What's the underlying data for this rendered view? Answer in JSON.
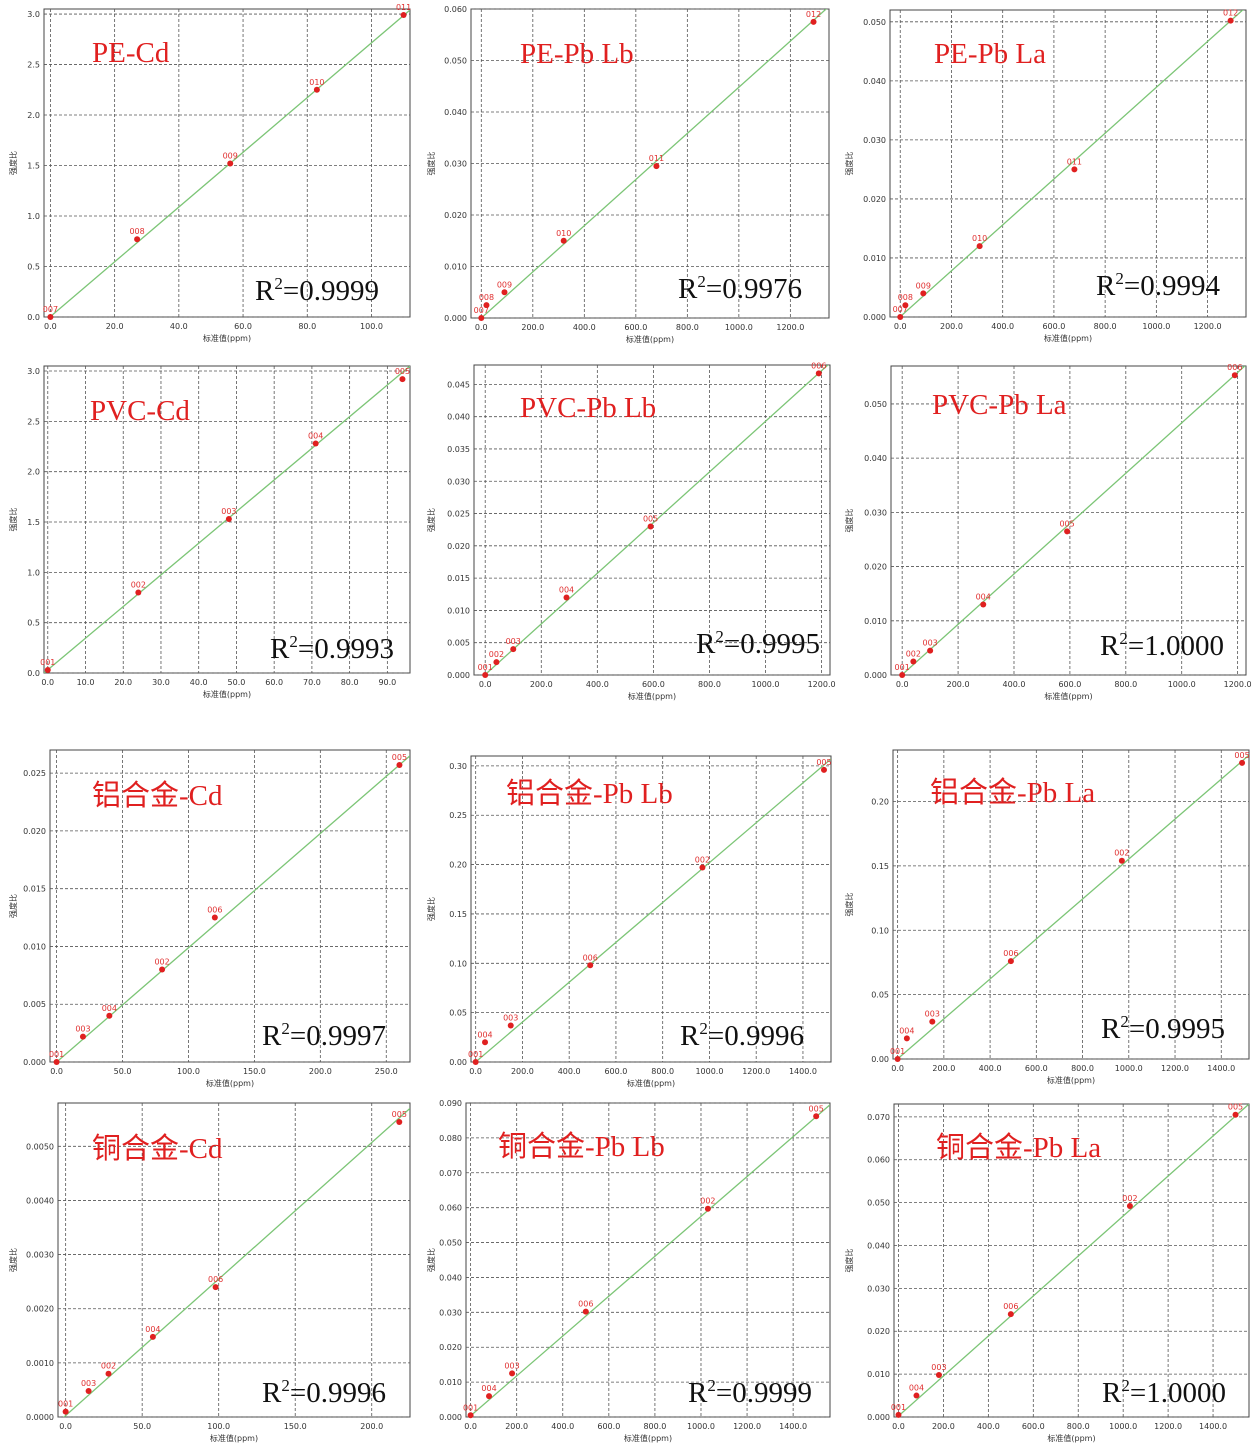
{
  "colors": {
    "point": "#e02020",
    "fit_line": "#7cc576",
    "grid": "#555555",
    "title": "#e02020",
    "r2": "#111111"
  },
  "r2_prefix": "R",
  "r2_exp": "2",
  "r2_sep": "=",
  "chart_data": [
    {
      "type": "scatter",
      "title": "PE-Cd",
      "xlabel": "标准值(ppm)",
      "ylabel": "强度比",
      "xlim": [
        -2,
        112
      ],
      "ylim": [
        0,
        3.05
      ],
      "xticks": [
        "0.0",
        "20.0",
        "40.0",
        "60.0",
        "80.0",
        "100.0"
      ],
      "xtick_values": [
        0,
        20,
        40,
        60,
        80,
        100
      ],
      "yticks": [
        "0.0",
        "0.5",
        "1.0",
        "1.5",
        "2.0",
        "2.5",
        "3.0"
      ],
      "ytick_values": [
        0,
        0.5,
        1,
        1.5,
        2,
        2.5,
        3
      ],
      "points": [
        {
          "label": "007",
          "x": 0,
          "y": 0
        },
        {
          "label": "008",
          "x": 27,
          "y": 0.77
        },
        {
          "label": "009",
          "x": 56,
          "y": 1.52
        },
        {
          "label": "010",
          "x": 83,
          "y": 2.25
        },
        {
          "label": "011",
          "x": 110,
          "y": 2.99
        }
      ],
      "fit": [
        [
          -2,
          -0.05
        ],
        [
          112,
          3.04
        ]
      ],
      "r2": "0.9999"
    },
    {
      "type": "scatter",
      "title": "PE-Pb Lb",
      "xlabel": "标准值(ppm)",
      "ylabel": "强度比",
      "xlim": [
        -40,
        1350
      ],
      "ylim": [
        0,
        0.06
      ],
      "xticks": [
        "0.0",
        "200.0",
        "400.0",
        "600.0",
        "800.0",
        "1000.0",
        "1200.0"
      ],
      "xtick_values": [
        0,
        200,
        400,
        600,
        800,
        1000,
        1200
      ],
      "yticks": [
        "0.000",
        "0.010",
        "0.020",
        "0.030",
        "0.040",
        "0.050",
        "0.060"
      ],
      "ytick_values": [
        0,
        0.01,
        0.02,
        0.03,
        0.04,
        0.05,
        0.06
      ],
      "points": [
        {
          "label": "007",
          "x": 0,
          "y": 0.0
        },
        {
          "label": "008",
          "x": 20,
          "y": 0.0025
        },
        {
          "label": "009",
          "x": 90,
          "y": 0.005
        },
        {
          "label": "010",
          "x": 320,
          "y": 0.015
        },
        {
          "label": "011",
          "x": 680,
          "y": 0.0295
        },
        {
          "label": "012",
          "x": 1290,
          "y": 0.0575
        }
      ],
      "fit": [
        [
          -40,
          -0.0018
        ],
        [
          1350,
          0.0605
        ]
      ],
      "r2": "0.9976"
    },
    {
      "type": "scatter",
      "title": "PE-Pb La",
      "xlabel": "标准值(ppm)",
      "ylabel": "强度比",
      "xlim": [
        -40,
        1350
      ],
      "ylim": [
        0,
        0.052
      ],
      "xticks": [
        "0.0",
        "200.0",
        "400.0",
        "600.0",
        "800.0",
        "1000.0",
        "1200.0"
      ],
      "xtick_values": [
        0,
        200,
        400,
        600,
        800,
        1000,
        1200
      ],
      "yticks": [
        "0.000",
        "0.010",
        "0.020",
        "0.030",
        "0.040",
        "0.050"
      ],
      "ytick_values": [
        0,
        0.01,
        0.02,
        0.03,
        0.04,
        0.05
      ],
      "points": [
        {
          "label": "007",
          "x": 0,
          "y": 0.0
        },
        {
          "label": "008",
          "x": 20,
          "y": 0.002
        },
        {
          "label": "009",
          "x": 90,
          "y": 0.004
        },
        {
          "label": "010",
          "x": 310,
          "y": 0.012
        },
        {
          "label": "011",
          "x": 680,
          "y": 0.025
        },
        {
          "label": "012",
          "x": 1290,
          "y": 0.0502
        }
      ],
      "fit": [
        [
          -40,
          -0.0015
        ],
        [
          1350,
          0.0525
        ]
      ],
      "r2": "0.9994"
    },
    {
      "type": "scatter",
      "title": "PVC-Cd",
      "xlabel": "标准值(ppm)",
      "ylabel": "强度比",
      "xlim": [
        -1,
        96
      ],
      "ylim": [
        0,
        3.05
      ],
      "xticks": [
        "0.0",
        "10.0",
        "20.0",
        "30.0",
        "40.0",
        "50.0",
        "60.0",
        "70.0",
        "80.0",
        "90.0"
      ],
      "xtick_values": [
        0,
        10,
        20,
        30,
        40,
        50,
        60,
        70,
        80,
        90
      ],
      "yticks": [
        "0.0",
        "0.5",
        "1.0",
        "1.5",
        "2.0",
        "2.5",
        "3.0"
      ],
      "ytick_values": [
        0,
        0.5,
        1,
        1.5,
        2,
        2.5,
        3
      ],
      "points": [
        {
          "label": "001",
          "x": 0,
          "y": 0.03
        },
        {
          "label": "002",
          "x": 24,
          "y": 0.8
        },
        {
          "label": "003",
          "x": 48,
          "y": 1.53
        },
        {
          "label": "004",
          "x": 71,
          "y": 2.28
        },
        {
          "label": "005",
          "x": 94,
          "y": 2.92
        }
      ],
      "fit": [
        [
          -1,
          0.0
        ],
        [
          96,
          3.05
        ]
      ],
      "r2": "0.9993"
    },
    {
      "type": "scatter",
      "title": "PVC-Pb Lb",
      "xlabel": "标准值(ppm)",
      "ylabel": "强度比",
      "xlim": [
        -40,
        1230
      ],
      "ylim": [
        0,
        0.048
      ],
      "xticks": [
        "0.0",
        "200.0",
        "400.0",
        "600.0",
        "800.0",
        "1000.0",
        "1200.0"
      ],
      "xtick_values": [
        0,
        200,
        400,
        600,
        800,
        1000,
        1200
      ],
      "yticks": [
        "0.000",
        "0.005",
        "0.010",
        "0.015",
        "0.020",
        "0.025",
        "0.030",
        "0.035",
        "0.040",
        "0.045"
      ],
      "ytick_values": [
        0,
        0.005,
        0.01,
        0.015,
        0.02,
        0.025,
        0.03,
        0.035,
        0.04,
        0.045
      ],
      "points": [
        {
          "label": "001",
          "x": 0,
          "y": 0.0
        },
        {
          "label": "002",
          "x": 40,
          "y": 0.002
        },
        {
          "label": "003",
          "x": 100,
          "y": 0.004
        },
        {
          "label": "004",
          "x": 290,
          "y": 0.012
        },
        {
          "label": "005",
          "x": 590,
          "y": 0.023
        },
        {
          "label": "006",
          "x": 1190,
          "y": 0.0467
        }
      ],
      "fit": [
        [
          -40,
          -0.0015
        ],
        [
          1230,
          0.0483
        ]
      ],
      "r2": "0.9995"
    },
    {
      "type": "scatter",
      "title": "PVC-Pb La",
      "xlabel": "标准值(ppm)",
      "ylabel": "强度比",
      "xlim": [
        -40,
        1230
      ],
      "ylim": [
        0,
        0.057
      ],
      "xticks": [
        "0.0",
        "200.0",
        "400.0",
        "600.0",
        "800.0",
        "1000.0",
        "1200.0"
      ],
      "xtick_values": [
        0,
        200,
        400,
        600,
        800,
        1000,
        1200
      ],
      "yticks": [
        "0.000",
        "0.010",
        "0.020",
        "0.030",
        "0.040",
        "0.050"
      ],
      "ytick_values": [
        0,
        0.01,
        0.02,
        0.03,
        0.04,
        0.05
      ],
      "points": [
        {
          "label": "001",
          "x": 0,
          "y": 0.0
        },
        {
          "label": "002",
          "x": 40,
          "y": 0.0025
        },
        {
          "label": "003",
          "x": 100,
          "y": 0.0045
        },
        {
          "label": "004",
          "x": 290,
          "y": 0.013
        },
        {
          "label": "005",
          "x": 590,
          "y": 0.0265
        },
        {
          "label": "006",
          "x": 1190,
          "y": 0.0553
        }
      ],
      "fit": [
        [
          -40,
          -0.0018
        ],
        [
          1230,
          0.0572
        ]
      ],
      "r2": "1.0000"
    },
    {
      "type": "scatter",
      "title": "铝合金-Cd",
      "xlabel": "标准值(ppm)",
      "ylabel": "强度比",
      "xlim": [
        -5,
        268
      ],
      "ylim": [
        0,
        0.027
      ],
      "xticks": [
        "0.0",
        "50.0",
        "100.0",
        "150.0",
        "200.0",
        "250.0"
      ],
      "xtick_values": [
        0,
        50,
        100,
        150,
        200,
        250
      ],
      "yticks": [
        "0.000",
        "0.005",
        "0.010",
        "0.015",
        "0.020",
        "0.025"
      ],
      "ytick_values": [
        0,
        0.005,
        0.01,
        0.015,
        0.02,
        0.025
      ],
      "points": [
        {
          "label": "001",
          "x": 0,
          "y": 0.0
        },
        {
          "label": "003",
          "x": 20,
          "y": 0.0022
        },
        {
          "label": "004",
          "x": 40,
          "y": 0.004
        },
        {
          "label": "002",
          "x": 80,
          "y": 0.008
        },
        {
          "label": "006",
          "x": 120,
          "y": 0.0125
        },
        {
          "label": "005",
          "x": 260,
          "y": 0.0257
        }
      ],
      "fit": [
        [
          -5,
          -0.0005
        ],
        [
          268,
          0.0265
        ]
      ],
      "r2": "0.9997"
    },
    {
      "type": "scatter",
      "title": "铝合金-Pb Lb",
      "xlabel": "标准值(ppm)",
      "ylabel": "强度比",
      "xlim": [
        -20,
        1520
      ],
      "ylim": [
        0,
        0.31
      ],
      "xticks": [
        "0.0",
        "200.0",
        "400.0",
        "600.0",
        "800.0",
        "1000.0",
        "1200.0",
        "1400.0"
      ],
      "xtick_values": [
        0,
        200,
        400,
        600,
        800,
        1000,
        1200,
        1400
      ],
      "yticks": [
        "0.00",
        "0.05",
        "0.10",
        "0.15",
        "0.20",
        "0.25",
        "0.30"
      ],
      "ytick_values": [
        0,
        0.05,
        0.1,
        0.15,
        0.2,
        0.25,
        0.3
      ],
      "points": [
        {
          "label": "001",
          "x": 0,
          "y": 0.0
        },
        {
          "label": "004",
          "x": 40,
          "y": 0.02
        },
        {
          "label": "003",
          "x": 150,
          "y": 0.037
        },
        {
          "label": "006",
          "x": 490,
          "y": 0.098
        },
        {
          "label": "002",
          "x": 970,
          "y": 0.197
        },
        {
          "label": "005",
          "x": 1490,
          "y": 0.296
        }
      ],
      "fit": [
        [
          -20,
          -0.004
        ],
        [
          1520,
          0.307
        ]
      ],
      "r2": "0.9996"
    },
    {
      "type": "scatter",
      "title": "铝合金-Pb La",
      "xlabel": "标准值(ppm)",
      "ylabel": "强度比",
      "xlim": [
        -20,
        1520
      ],
      "ylim": [
        0,
        0.24
      ],
      "xticks": [
        "0.0",
        "200.0",
        "400.0",
        "600.0",
        "800.0",
        "1000.0",
        "1200.0",
        "1400.0"
      ],
      "xtick_values": [
        0,
        200,
        400,
        600,
        800,
        1000,
        1200,
        1400
      ],
      "yticks": [
        "0.00",
        "0.05",
        "0.10",
        "0.15",
        "0.20"
      ],
      "ytick_values": [
        0,
        0.05,
        0.1,
        0.15,
        0.2
      ],
      "points": [
        {
          "label": "001",
          "x": 0,
          "y": 0.0
        },
        {
          "label": "004",
          "x": 40,
          "y": 0.016
        },
        {
          "label": "003",
          "x": 150,
          "y": 0.029
        },
        {
          "label": "006",
          "x": 490,
          "y": 0.076
        },
        {
          "label": "002",
          "x": 970,
          "y": 0.154
        },
        {
          "label": "005",
          "x": 1490,
          "y": 0.23
        }
      ],
      "fit": [
        [
          -20,
          -0.003
        ],
        [
          1520,
          0.236
        ]
      ],
      "r2": "0.9995"
    },
    {
      "type": "scatter",
      "title": "铜合金-Cd",
      "xlabel": "标准值(ppm)",
      "ylabel": "强度比",
      "xlim": [
        -5,
        225
      ],
      "ylim": [
        0,
        0.0058
      ],
      "xticks": [
        "0.0",
        "50.0",
        "100.0",
        "150.0",
        "200.0"
      ],
      "xtick_values": [
        0,
        50,
        100,
        150,
        200
      ],
      "yticks": [
        "0.0000",
        "0.0010",
        "0.0020",
        "0.0030",
        "0.0040",
        "0.0050"
      ],
      "ytick_values": [
        0,
        0.001,
        0.002,
        0.003,
        0.004,
        0.005
      ],
      "points": [
        {
          "label": "001",
          "x": 0,
          "y": 0.0001
        },
        {
          "label": "003",
          "x": 15,
          "y": 0.00048
        },
        {
          "label": "002",
          "x": 28,
          "y": 0.0008
        },
        {
          "label": "004",
          "x": 57,
          "y": 0.00148
        },
        {
          "label": "006",
          "x": 98,
          "y": 0.0024
        },
        {
          "label": "005",
          "x": 218,
          "y": 0.00545
        }
      ],
      "fit": [
        [
          -5,
          -0.0001
        ],
        [
          225,
          0.0057
        ]
      ],
      "r2": "0.9996"
    },
    {
      "type": "scatter",
      "title": "铜合金-Pb Lb",
      "xlabel": "标准值(ppm)",
      "ylabel": "强度比",
      "xlim": [
        -20,
        1560
      ],
      "ylim": [
        0,
        0.09
      ],
      "xticks": [
        "0.0",
        "200.0",
        "400.0",
        "600.0",
        "800.0",
        "1000.0",
        "1200.0",
        "1400.0"
      ],
      "xtick_values": [
        0,
        200,
        400,
        600,
        800,
        1000,
        1200,
        1400
      ],
      "yticks": [
        "0.000",
        "0.010",
        "0.020",
        "0.030",
        "0.040",
        "0.050",
        "0.060",
        "0.070",
        "0.080",
        "0.090"
      ],
      "ytick_values": [
        0,
        0.01,
        0.02,
        0.03,
        0.04,
        0.05,
        0.06,
        0.07,
        0.08,
        0.09
      ],
      "points": [
        {
          "label": "001",
          "x": 0,
          "y": 0.0005
        },
        {
          "label": "004",
          "x": 80,
          "y": 0.006
        },
        {
          "label": "003",
          "x": 180,
          "y": 0.0125
        },
        {
          "label": "006",
          "x": 500,
          "y": 0.0302
        },
        {
          "label": "002",
          "x": 1030,
          "y": 0.0597
        },
        {
          "label": "005",
          "x": 1500,
          "y": 0.0862
        }
      ],
      "fit": [
        [
          -20,
          -0.0008
        ],
        [
          1560,
          0.0895
        ]
      ],
      "r2": "0.9999"
    },
    {
      "type": "scatter",
      "title": "铜合金-Pb La",
      "xlabel": "标准值(ppm)",
      "ylabel": "强度比",
      "xlim": [
        -20,
        1560
      ],
      "ylim": [
        0,
        0.073
      ],
      "xticks": [
        "0.0",
        "200.0",
        "400.0",
        "600.0",
        "800.0",
        "1000.0",
        "1200.0",
        "1400.0"
      ],
      "xtick_values": [
        0,
        200,
        400,
        600,
        800,
        1000,
        1200,
        1400
      ],
      "yticks": [
        "0.000",
        "0.010",
        "0.020",
        "0.030",
        "0.040",
        "0.050",
        "0.060",
        "0.070"
      ],
      "ytick_values": [
        0,
        0.01,
        0.02,
        0.03,
        0.04,
        0.05,
        0.06,
        0.07
      ],
      "points": [
        {
          "label": "001",
          "x": 0,
          "y": 0.0005
        },
        {
          "label": "004",
          "x": 80,
          "y": 0.005
        },
        {
          "label": "003",
          "x": 180,
          "y": 0.0098
        },
        {
          "label": "006",
          "x": 500,
          "y": 0.024
        },
        {
          "label": "002",
          "x": 1030,
          "y": 0.0492
        },
        {
          "label": "005",
          "x": 1500,
          "y": 0.0705
        }
      ],
      "fit": [
        [
          -20,
          -0.0007
        ],
        [
          1560,
          0.073
        ]
      ],
      "r2": "1.0000"
    }
  ]
}
